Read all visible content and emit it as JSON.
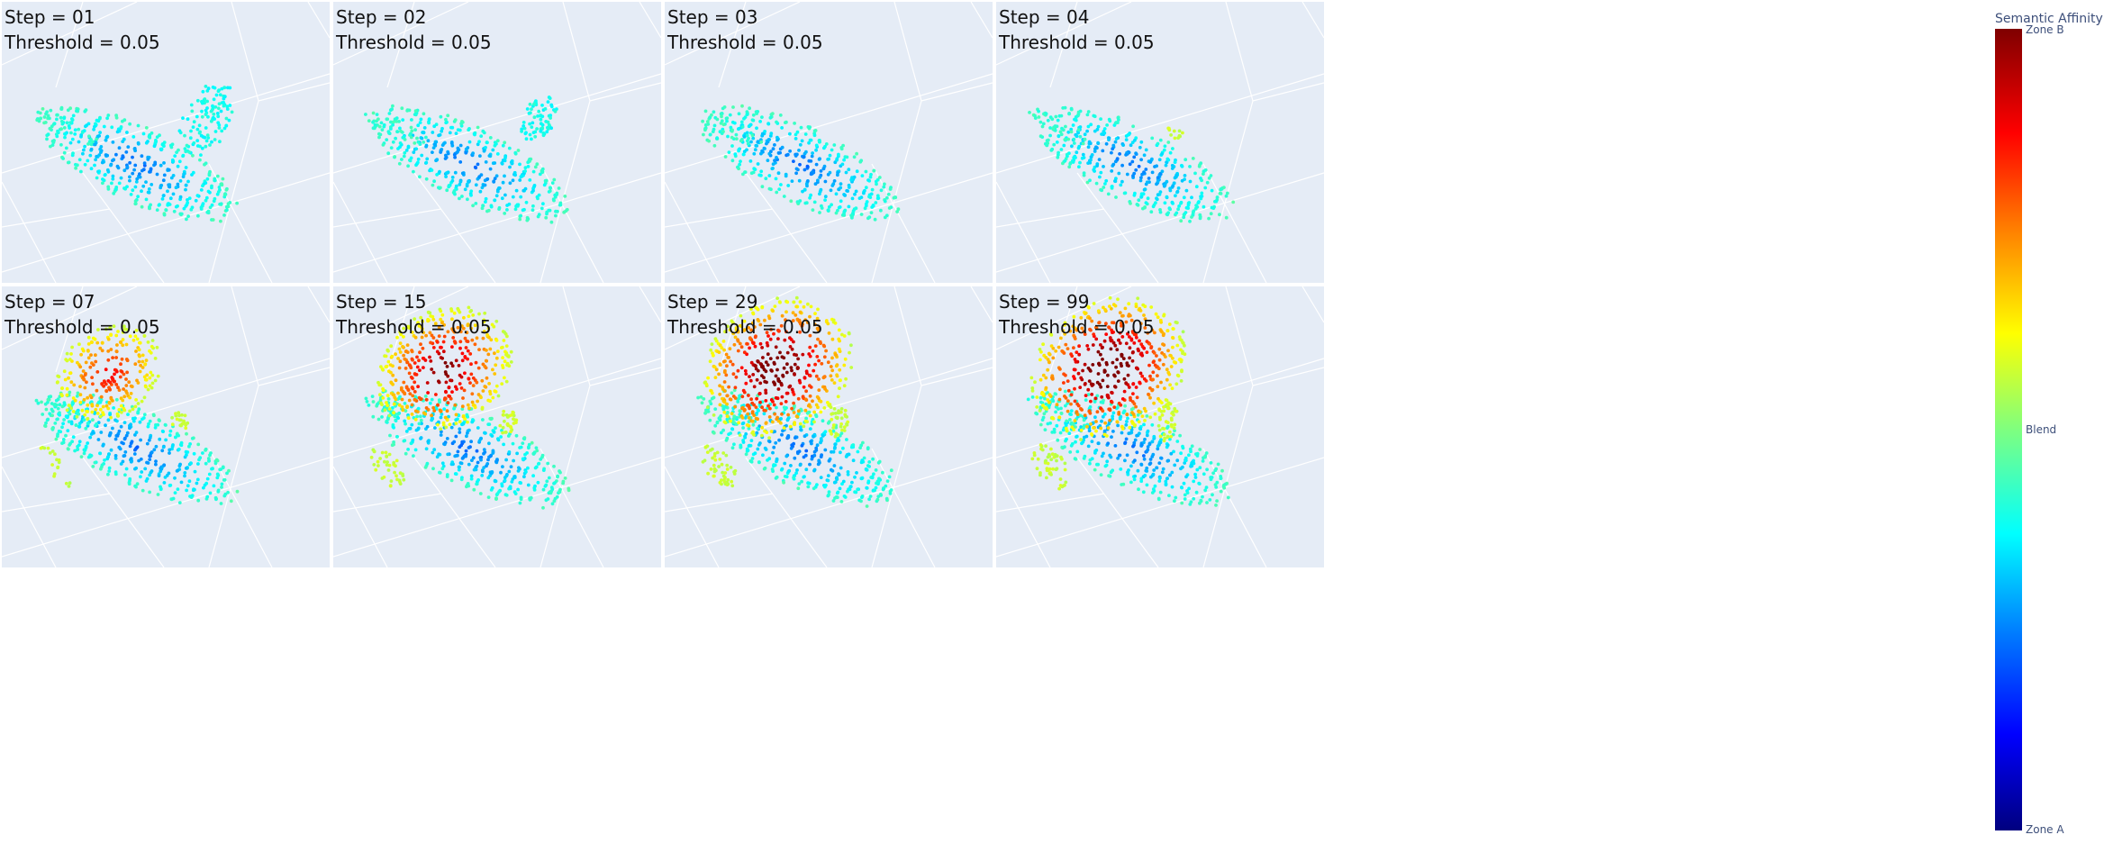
{
  "panels": [
    {
      "step": "Step = 01",
      "threshold": "Threshold = 0.05",
      "hot": 0,
      "wing": 1.0,
      "side": 0
    },
    {
      "step": "Step = 02",
      "threshold": "Threshold = 0.05",
      "hot": 0,
      "wing": 0.6,
      "side": 0
    },
    {
      "step": "Step = 03",
      "threshold": "Threshold = 0.05",
      "hot": 0,
      "wing": 0,
      "side": 0
    },
    {
      "step": "Step = 04",
      "threshold": "Threshold = 0.05",
      "hot": 0,
      "wing": 0,
      "side": 0.3
    },
    {
      "step": "Step = 07",
      "threshold": "Threshold = 0.05",
      "hot": 0.35,
      "wing": 0,
      "side": 0.5
    },
    {
      "step": "Step = 15",
      "threshold": "Threshold = 0.05",
      "hot": 0.75,
      "wing": 0,
      "side": 0.7
    },
    {
      "step": "Step = 29",
      "threshold": "Threshold = 0.05",
      "hot": 0.95,
      "wing": 0,
      "side": 0.85
    },
    {
      "step": "Step = 99",
      "threshold": "Threshold = 0.05",
      "hot": 1.0,
      "wing": 0,
      "side": 1.0
    }
  ],
  "colorbar": {
    "title": "Semantic Affinity",
    "tick_top": "Zone B",
    "tick_mid": "Blend",
    "tick_bottom": "Zone A",
    "colorscale": "Jet"
  },
  "chart_data": {
    "type": "scatter",
    "title": "",
    "series_color_variable": "Semantic Affinity",
    "facets": [
      "Step = 01",
      "Step = 02",
      "Step = 03",
      "Step = 04",
      "Step = 07",
      "Step = 15",
      "Step = 29",
      "Step = 99"
    ],
    "threshold": 0.05,
    "colorbar_range_labels": [
      "Zone A",
      "Blend",
      "Zone B"
    ]
  }
}
